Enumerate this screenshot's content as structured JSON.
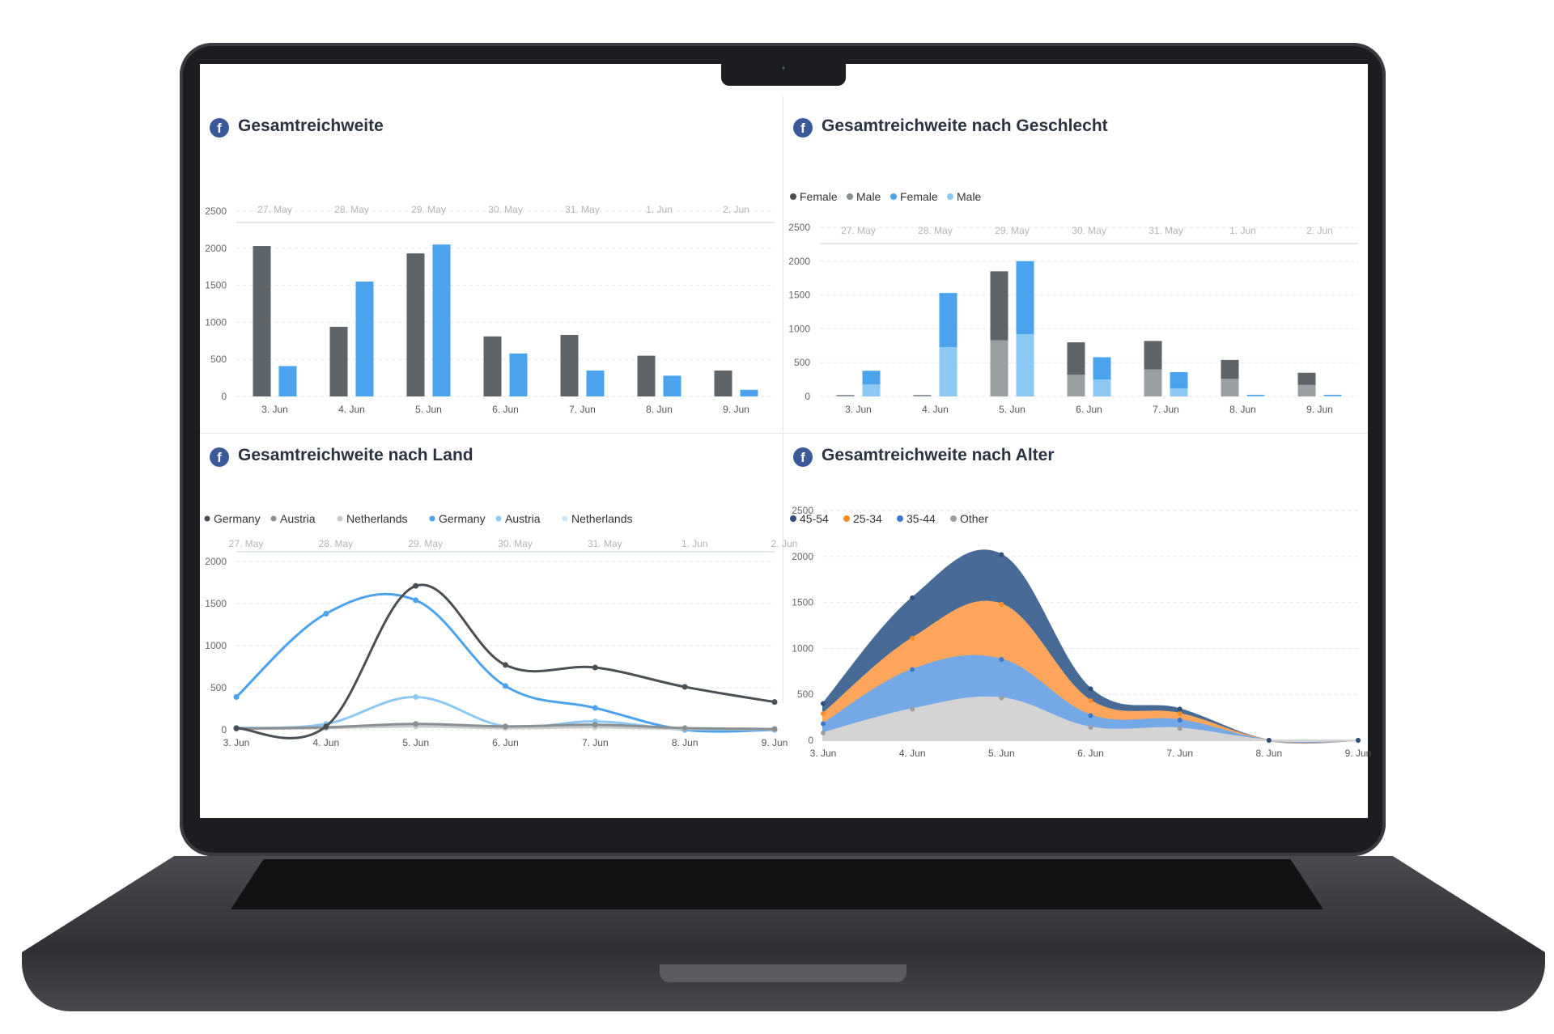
{
  "panels": {
    "p1": {
      "title": "Gesamtreichweite",
      "icon": "facebook-icon"
    },
    "p2": {
      "title": "Gesamtreichweite nach Geschlecht",
      "icon": "facebook-icon"
    },
    "p3": {
      "title": "Gesamtreichweite nach Land",
      "icon": "facebook-icon"
    },
    "p4": {
      "title": "Gesamtreichweite nach Alter",
      "icon": "facebook-icon"
    }
  },
  "colors": {
    "dark": "#5e6468",
    "blue": "#4aa3ec",
    "lightblue": "#8cc8f3",
    "grey": "#9a9fa2",
    "navy": "#476a96",
    "orange": "#ffa65c",
    "midblue": "#74a8e6",
    "lightgrey": "#d4d4d4"
  },
  "chart_data": [
    {
      "type": "bar",
      "title": "Gesamtreichweite",
      "categories": [
        "3. Jun",
        "4. Jun",
        "5. Jun",
        "6. Jun",
        "7. Jun",
        "8. Jun",
        "9. Jun"
      ],
      "top_categories": [
        "27. May",
        "28. May",
        "29. May",
        "30. May",
        "31. May",
        "1. Jun",
        "2. Jun"
      ],
      "yticks": [
        "0",
        "500",
        "1000",
        "1500",
        "2000",
        "2500"
      ],
      "ylim": [
        0,
        2500
      ],
      "series": [
        {
          "values": [
            2030,
            940,
            1930,
            810,
            830,
            550,
            350
          ],
          "color": "#5e6468"
        },
        {
          "values": [
            410,
            1550,
            2050,
            580,
            350,
            280,
            90
          ],
          "color": "#4aa3ec"
        }
      ]
    },
    {
      "type": "bar",
      "title": "Gesamtreichweite nach Geschlecht",
      "stacked": true,
      "categories": [
        "3. Jun",
        "4. Jun",
        "5. Jun",
        "6. Jun",
        "7. Jun",
        "8. Jun",
        "9. Jun"
      ],
      "top_categories": [
        "27. May",
        "28. May",
        "29. May",
        "30. May",
        "31. May",
        "1. Jun",
        "2. Jun"
      ],
      "yticks": [
        "0",
        "500",
        "1000",
        "1500",
        "2000",
        "2500"
      ],
      "ylim": [
        0,
        2500
      ],
      "legend": [
        "Female",
        "Male",
        "Female",
        "Male"
      ],
      "legend_colors": [
        "#4a4f53",
        "#8a8f92",
        "#4aa3ec",
        "#8cc8f3"
      ],
      "groups": [
        {
          "stack": [
            {
              "name": "Female",
              "values": [
                10,
                10,
                1020,
                480,
                420,
                280,
                180
              ],
              "color": "#5e6468"
            },
            {
              "name": "Male",
              "values": [
                10,
                10,
                830,
                320,
                400,
                260,
                170
              ],
              "color": "#9a9fa2"
            }
          ]
        },
        {
          "stack": [
            {
              "name": "Female",
              "values": [
                200,
                800,
                1080,
                330,
                240,
                15,
                15
              ],
              "color": "#4aa3ec"
            },
            {
              "name": "Male",
              "values": [
                180,
                730,
                920,
                250,
                120,
                10,
                10
              ],
              "color": "#8cc8f3"
            }
          ]
        }
      ]
    },
    {
      "type": "line",
      "title": "Gesamtreichweite nach Land",
      "categories": [
        "3. Jun",
        "4. Jun",
        "5. Jun",
        "6. Jun",
        "7. Jun",
        "8. Jun",
        "9. Jun"
      ],
      "top_categories": [
        "27. May",
        "28. May",
        "29. May",
        "30. May",
        "31. May",
        "1. Jun",
        "2. Jun"
      ],
      "yticks": [
        "0",
        "500",
        "1000",
        "1500",
        "2000"
      ],
      "ylim": [
        0,
        2000
      ],
      "legend": [
        "Germany",
        "Austria",
        "Netherlands",
        "Germany",
        "Austria",
        "Netherlands"
      ],
      "series": [
        {
          "name": "Germany",
          "values": [
            20,
            40,
            1710,
            770,
            740,
            510,
            330
          ],
          "color": "#4a4f53"
        },
        {
          "name": "Austria",
          "values": [
            15,
            30,
            70,
            40,
            60,
            20,
            10
          ],
          "color": "#8a8f92"
        },
        {
          "name": "Netherlands",
          "values": [
            10,
            20,
            40,
            20,
            30,
            10,
            5
          ],
          "color": "#c8cbcd"
        },
        {
          "name": "Germany",
          "values": [
            390,
            1380,
            1540,
            520,
            260,
            0,
            0
          ],
          "color": "#4aa3ec"
        },
        {
          "name": "Austria",
          "values": [
            20,
            70,
            390,
            40,
            100,
            0,
            0
          ],
          "color": "#8cc8f3"
        },
        {
          "name": "Netherlands",
          "values": [
            10,
            30,
            50,
            30,
            60,
            10,
            5
          ],
          "color": "#c9e4f8"
        }
      ]
    },
    {
      "type": "area",
      "title": "Gesamtreichweite nach Alter",
      "stacked": true,
      "categories": [
        "3. Jun",
        "4. Jun",
        "5. Jun",
        "6. Jun",
        "7. Jun",
        "8. Jun",
        "9. Jun"
      ],
      "yticks": [
        "0",
        "500",
        "1000",
        "1500",
        "2000",
        "2500"
      ],
      "ylim": [
        0,
        2500
      ],
      "legend": [
        "45-54",
        "25-34",
        "35-44",
        "Other"
      ],
      "series": [
        {
          "name": "Other",
          "values": [
            80,
            340,
            460,
            140,
            130,
            0,
            0
          ],
          "color": "#d4d4d4"
        },
        {
          "name": "35-44",
          "values": [
            100,
            430,
            420,
            130,
            90,
            0,
            0
          ],
          "color": "#74a8e6"
        },
        {
          "name": "25-34",
          "values": [
            110,
            340,
            600,
            160,
            70,
            0,
            0
          ],
          "color": "#ffa65c"
        },
        {
          "name": "45-54",
          "values": [
            110,
            440,
            540,
            130,
            50,
            0,
            0
          ],
          "color": "#476a96"
        }
      ]
    }
  ]
}
